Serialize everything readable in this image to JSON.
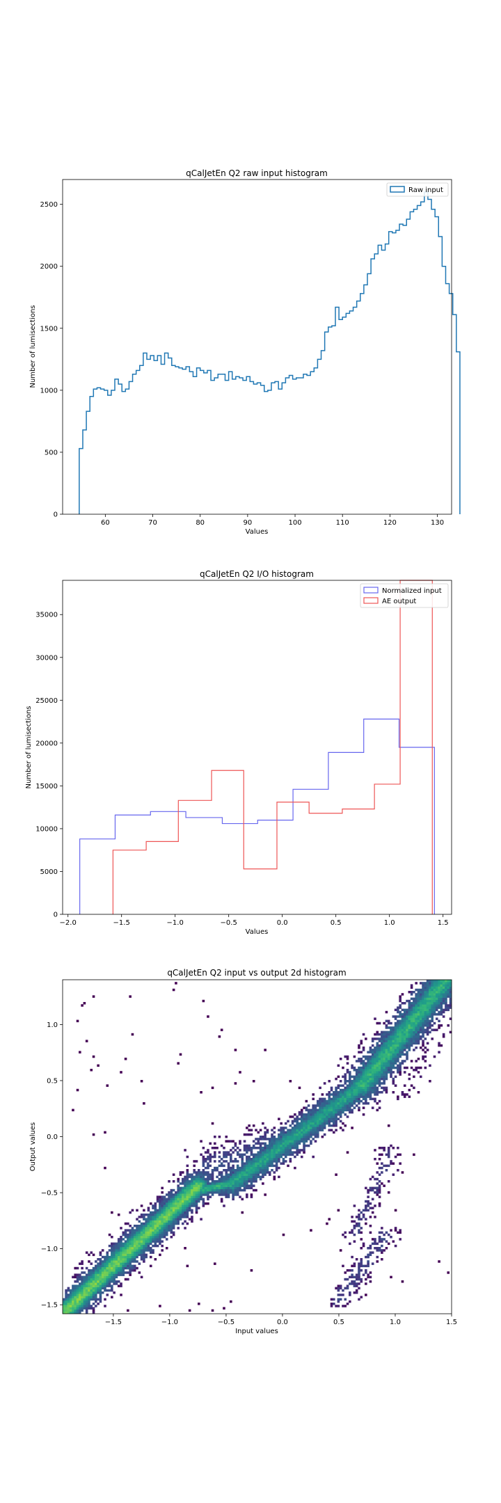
{
  "chart_data": [
    {
      "type": "histogram",
      "title": "qCalJetEn Q2 raw input histogram",
      "xlabel": "Values",
      "ylabel": "Number of lumisections",
      "xlim": [
        51,
        133
      ],
      "ylim": [
        0,
        2700
      ],
      "xticks": [
        60,
        70,
        80,
        90,
        100,
        110,
        120,
        130
      ],
      "yticks": [
        0,
        500,
        1000,
        1500,
        2000,
        2500
      ],
      "grid": false,
      "legend": "upper right",
      "series": [
        {
          "name": "Raw input",
          "color": "#1f77b4",
          "bin_start": 54.5,
          "bin_width": 0.75,
          "counts": [
            530,
            680,
            830,
            950,
            1010,
            1020,
            1010,
            1000,
            960,
            1000,
            1090,
            1050,
            990,
            1010,
            1070,
            1130,
            1160,
            1200,
            1300,
            1250,
            1280,
            1240,
            1280,
            1210,
            1300,
            1260,
            1200,
            1190,
            1180,
            1170,
            1190,
            1150,
            1110,
            1180,
            1160,
            1140,
            1160,
            1080,
            1100,
            1130,
            1130,
            1080,
            1150,
            1090,
            1110,
            1100,
            1080,
            1110,
            1070,
            1050,
            1060,
            1040,
            990,
            1000,
            1060,
            1070,
            1010,
            1060,
            1100,
            1120,
            1090,
            1100,
            1100,
            1130,
            1120,
            1150,
            1180,
            1250,
            1320,
            1470,
            1510,
            1520,
            1670,
            1570,
            1590,
            1620,
            1640,
            1670,
            1720,
            1780,
            1850,
            1940,
            2060,
            2100,
            2170,
            2130,
            2180,
            2280,
            2270,
            2290,
            2340,
            2330,
            2380,
            2440,
            2460,
            2490,
            2520,
            2600,
            2540,
            2460,
            2400,
            2240,
            2000,
            1860,
            1780,
            1610,
            1310
          ]
        }
      ]
    },
    {
      "type": "histogram",
      "title": "qCalJetEn Q2 I/O histogram",
      "xlabel": "Values",
      "ylabel": "Number of lumisections",
      "xlim": [
        -2.05,
        1.58
      ],
      "ylim": [
        0,
        39000
      ],
      "xticks": [
        -2.0,
        -1.5,
        -1.0,
        -0.5,
        0.0,
        0.5,
        1.0,
        1.5
      ],
      "xtick_labels": [
        "−2.0",
        "−1.5",
        "−1.0",
        "−0.5",
        "0.0",
        "0.5",
        "1.0",
        "1.5"
      ],
      "yticks": [
        0,
        5000,
        10000,
        15000,
        20000,
        25000,
        30000,
        35000
      ],
      "grid": false,
      "legend": "upper right",
      "series": [
        {
          "name": "Normalized input",
          "color": "#6666ee",
          "edges": [
            -1.89,
            -1.56,
            -1.23,
            -0.9,
            -0.56,
            -0.23,
            0.1,
            0.43,
            0.76,
            1.09,
            1.42
          ],
          "counts": [
            8800,
            11600,
            12000,
            11300,
            10600,
            11000,
            14600,
            18900,
            22800,
            19500
          ]
        },
        {
          "name": "AE output",
          "color": "#ee5555",
          "edges": [
            -1.58,
            -1.27,
            -0.97,
            -0.66,
            -0.36,
            -0.05,
            0.25,
            0.56,
            0.86,
            1.1,
            1.4
          ],
          "counts": [
            7500,
            8500,
            13300,
            16800,
            5300,
            13100,
            11800,
            12300,
            15200,
            39000
          ]
        }
      ]
    },
    {
      "type": "heatmap",
      "title": "qCalJetEn Q2 input vs output 2d histogram",
      "xlabel": "Input values",
      "ylabel": "Output values",
      "xlim": [
        -1.95,
        1.5
      ],
      "ylim": [
        -1.58,
        1.4
      ],
      "xticks": [
        -1.5,
        -1.0,
        -0.5,
        0.0,
        0.5,
        1.0,
        1.5
      ],
      "xtick_labels": [
        "−1.5",
        "−1.0",
        "−0.5",
        "0.0",
        "0.5",
        "1.0",
        "1.5"
      ],
      "yticks": [
        -1.5,
        -1.0,
        -0.5,
        0.0,
        0.5,
        1.0
      ],
      "ytick_labels": [
        "−1.5",
        "−1.0",
        "−0.5",
        "0.0",
        "0.5",
        "1.0"
      ],
      "colormap": "viridis",
      "grid": false,
      "bands": [
        {
          "x0": -1.92,
          "x1": -0.75,
          "y0": -1.55,
          "y1": -0.44,
          "sigma": 0.09,
          "peak": 0.95
        },
        {
          "x0": -0.75,
          "x1": -0.45,
          "y0": -0.48,
          "y1": -0.42,
          "sigma": 0.05,
          "peak": 0.85
        },
        {
          "x0": -0.45,
          "x1": 0.7,
          "y0": -0.42,
          "y1": 0.45,
          "sigma": 0.09,
          "peak": 0.8
        },
        {
          "x0": 0.7,
          "x1": 1.45,
          "y0": 0.45,
          "y1": 1.4,
          "sigma": 0.11,
          "peak": 0.85
        },
        {
          "x0": -0.65,
          "x1": -0.05,
          "y0": -0.3,
          "y1": -0.05,
          "sigma": 0.12,
          "peak": 0.35
        },
        {
          "x0": 0.65,
          "x1": 0.95,
          "y0": -0.85,
          "y1": -0.15,
          "sigma": 0.06,
          "peak": 0.25
        },
        {
          "x0": 0.5,
          "x1": 0.9,
          "y0": -1.45,
          "y1": -0.9,
          "sigma": 0.07,
          "peak": 0.3
        },
        {
          "x0": 1.1,
          "x1": 1.45,
          "y0": 0.4,
          "y1": 1.1,
          "sigma": 0.08,
          "peak": 0.15
        }
      ]
    }
  ]
}
